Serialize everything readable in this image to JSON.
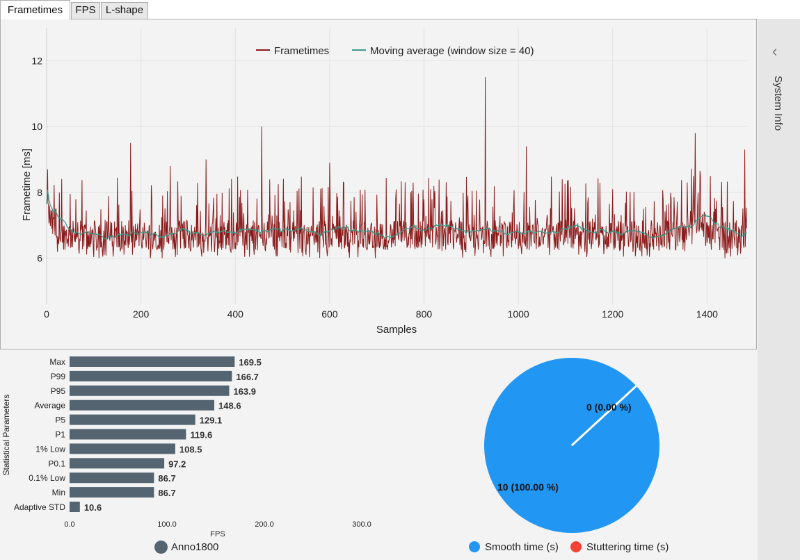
{
  "tabs": [
    {
      "label": "Frametimes",
      "active": true
    },
    {
      "label": "FPS",
      "active": false
    },
    {
      "label": "L-shape",
      "active": false
    }
  ],
  "side_panel": {
    "title": "System Info",
    "toggle_icon": "chevron-left-icon"
  },
  "colors": {
    "frametimes": "#8b1a1a",
    "moving_average": "#3a9a8a",
    "bars": "#546470",
    "smooth": "#2196f3",
    "stutter": "#f44336"
  },
  "chart_data": [
    {
      "type": "line",
      "title": "",
      "xlabel": "Samples",
      "ylabel": "Frametime [ms]",
      "xlim": [
        0,
        1485
      ],
      "ylim": [
        4.6,
        13.0
      ],
      "x_ticks": [
        0,
        200,
        400,
        600,
        800,
        1000,
        1200,
        1400
      ],
      "y_ticks": [
        6,
        8,
        10,
        12
      ],
      "legend": [
        "Frametimes",
        "Moving average (window size = 40)"
      ],
      "legend_position": "top-center",
      "sample_count": 1485,
      "baseline_ms": 6.7,
      "series": [
        {
          "name": "Frametimes",
          "summary": "noisy frametimes mostly between 6.0 and 8.0 ms",
          "spikes": [
            {
              "x": 2,
              "y": 8.7
            },
            {
              "x": 178,
              "y": 9.5
            },
            {
              "x": 262,
              "y": 8.8
            },
            {
              "x": 338,
              "y": 9.0
            },
            {
              "x": 456,
              "y": 10.0
            },
            {
              "x": 600,
              "y": 8.9
            },
            {
              "x": 930,
              "y": 11.5
            },
            {
              "x": 1017,
              "y": 9.4
            },
            {
              "x": 1375,
              "y": 9.8
            },
            {
              "x": 1480,
              "y": 9.3
            }
          ]
        },
        {
          "name": "Moving average (window size = 40)",
          "summary": "smooth curve near 6.7 ms, starts near 7.5 ms, bump to 7.1 ms near sample 1380"
        }
      ]
    },
    {
      "type": "bar",
      "orientation": "horizontal",
      "categories": [
        "Max",
        "P99",
        "P95",
        "Average",
        "P5",
        "P1",
        "1% Low",
        "P0.1",
        "0.1% Low",
        "Min",
        "Adaptive STD"
      ],
      "values": [
        169.5,
        166.7,
        163.9,
        148.6,
        129.1,
        119.6,
        108.5,
        97.2,
        86.7,
        86.7,
        10.6
      ],
      "value_labels": [
        "169.5",
        "166.7",
        "163.9",
        "148.6",
        "129.1",
        "119.6",
        "108.5",
        "97.2",
        "86.7",
        "86.7",
        "10.6"
      ],
      "xlabel": "FPS",
      "ylabel": "Statistical Parameters",
      "xlim": [
        0,
        300
      ],
      "x_ticks": [
        "0.0",
        "100.0",
        "200.0",
        "300.0"
      ],
      "legend": [
        "Anno1800"
      ]
    },
    {
      "type": "pie",
      "slices": [
        {
          "name": "Smooth time (s)",
          "value": 10,
          "label": "10 (100.00 %)"
        },
        {
          "name": "Stuttering time (s)",
          "value": 0,
          "label": "0 (0.00 %)"
        }
      ],
      "legend": [
        "Smooth time (s)",
        "Stuttering time (s)"
      ],
      "legend_position": "bottom"
    }
  ]
}
